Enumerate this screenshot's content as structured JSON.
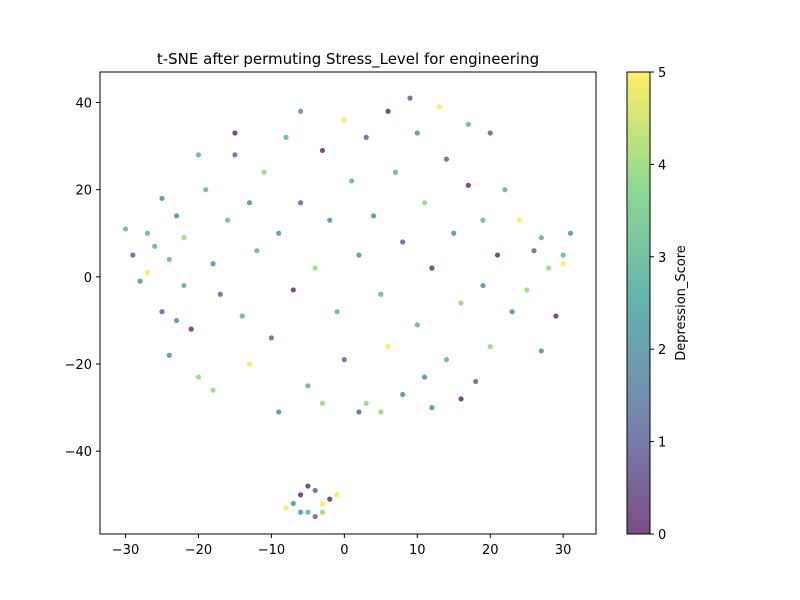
{
  "chart_data": {
    "type": "scatter",
    "title": "t-SNE after permuting Stress_Level for engineering",
    "xlabel": "",
    "ylabel": "",
    "xlim": [
      -33.5,
      34.5
    ],
    "ylim": [
      -59,
      47
    ],
    "xticks": [
      -30,
      -20,
      -10,
      0,
      10,
      20,
      30
    ],
    "yticks": [
      -40,
      -20,
      0,
      20,
      40
    ],
    "grid": false,
    "colorbar": {
      "label": "Depression_Score",
      "range": [
        0,
        5
      ],
      "ticks": [
        0,
        1,
        2,
        3,
        4,
        5
      ],
      "colormap": "viridis"
    },
    "colormap_stops": [
      "#440154",
      "#3b528b",
      "#21918c",
      "#5ec962",
      "#fde725"
    ],
    "point_alpha": 0.7,
    "points": [
      [
        -30,
        11,
        3
      ],
      [
        -29,
        5,
        1
      ],
      [
        -27,
        10,
        3
      ],
      [
        -28,
        -1,
        2
      ],
      [
        -26,
        7,
        3
      ],
      [
        -25,
        18,
        2
      ],
      [
        -27,
        1,
        5
      ],
      [
        -24,
        4,
        3
      ],
      [
        -25,
        -8,
        1
      ],
      [
        -23,
        14,
        2
      ],
      [
        -22,
        9,
        4
      ],
      [
        -22,
        -2,
        3
      ],
      [
        -21,
        -12,
        0
      ],
      [
        -24,
        -18,
        2
      ],
      [
        -20,
        -23,
        4
      ],
      [
        -18,
        -26,
        4
      ],
      [
        -19,
        20,
        3
      ],
      [
        -18,
        3,
        2
      ],
      [
        -17,
        -4,
        1
      ],
      [
        -16,
        13,
        3
      ],
      [
        -15,
        28,
        1
      ],
      [
        -15,
        33,
        0
      ],
      [
        -14,
        -9,
        3
      ],
      [
        -13,
        17,
        2
      ],
      [
        -13,
        -20,
        5
      ],
      [
        -12,
        6,
        3
      ],
      [
        -11,
        24,
        4
      ],
      [
        -10,
        -14,
        1
      ],
      [
        -9,
        10,
        2
      ],
      [
        -8,
        32,
        3
      ],
      [
        -7,
        -3,
        0
      ],
      [
        -6,
        38,
        2
      ],
      [
        -6,
        17,
        1
      ],
      [
        -5,
        -25,
        3
      ],
      [
        -4,
        2,
        4
      ],
      [
        -3,
        29,
        0
      ],
      [
        -2,
        13,
        2
      ],
      [
        -1,
        -8,
        3
      ],
      [
        0,
        36,
        5
      ],
      [
        0,
        -19,
        1
      ],
      [
        1,
        22,
        3
      ],
      [
        2,
        5,
        2
      ],
      [
        3,
        -29,
        4
      ],
      [
        3,
        32,
        1
      ],
      [
        4,
        14,
        2
      ],
      [
        5,
        -4,
        3
      ],
      [
        6,
        38,
        0
      ],
      [
        6,
        -16,
        5
      ],
      [
        7,
        24,
        3
      ],
      [
        8,
        8,
        1
      ],
      [
        8,
        -27,
        2
      ],
      [
        9,
        41,
        1
      ],
      [
        10,
        33,
        2
      ],
      [
        10,
        -11,
        3
      ],
      [
        11,
        17,
        4
      ],
      [
        12,
        2,
        0
      ],
      [
        12,
        -30,
        2
      ],
      [
        13,
        39,
        5
      ],
      [
        14,
        27,
        1
      ],
      [
        14,
        -19,
        3
      ],
      [
        15,
        10,
        2
      ],
      [
        16,
        -6,
        4
      ],
      [
        17,
        35,
        3
      ],
      [
        17,
        21,
        0
      ],
      [
        18,
        -24,
        1
      ],
      [
        19,
        13,
        3
      ],
      [
        19,
        -2,
        2
      ],
      [
        20,
        33,
        1
      ],
      [
        20,
        -16,
        4
      ],
      [
        21,
        5,
        0
      ],
      [
        22,
        20,
        3
      ],
      [
        23,
        -8,
        2
      ],
      [
        24,
        13,
        5
      ],
      [
        25,
        -3,
        4
      ],
      [
        26,
        6,
        1
      ],
      [
        27,
        -17,
        2
      ],
      [
        27,
        9,
        3
      ],
      [
        28,
        2,
        4
      ],
      [
        29,
        -9,
        0
      ],
      [
        30,
        5,
        3
      ],
      [
        31,
        10,
        2
      ],
      [
        30,
        3,
        5
      ],
      [
        -20,
        28,
        3
      ],
      [
        -23,
        -10,
        2
      ],
      [
        -9,
        -31,
        2
      ],
      [
        -3,
        -29,
        4
      ],
      [
        2,
        -31,
        1
      ],
      [
        5,
        -31,
        4
      ],
      [
        11,
        -23,
        2
      ],
      [
        16,
        -28,
        0
      ],
      [
        -7,
        -52,
        2
      ],
      [
        -6,
        -50,
        0
      ],
      [
        -5,
        -54,
        3
      ],
      [
        -4,
        -49,
        1
      ],
      [
        -3,
        -52,
        5
      ],
      [
        -2,
        -51,
        0
      ],
      [
        -8,
        -53,
        5
      ],
      [
        -1,
        -50,
        5
      ],
      [
        -6,
        -54,
        2
      ],
      [
        -4,
        -55,
        1
      ],
      [
        -5,
        -48,
        0
      ],
      [
        -3,
        -54,
        4
      ]
    ]
  }
}
